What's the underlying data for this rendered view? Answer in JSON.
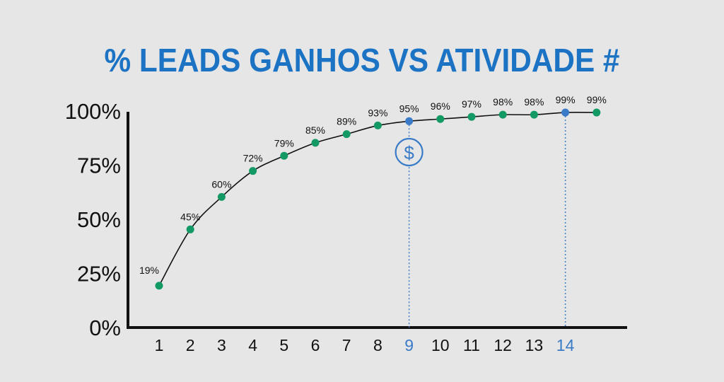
{
  "title": "% LEADS GANHOS VS ATIVIDADE #",
  "chart_data": {
    "type": "line",
    "title": "% LEADS GANHOS VS ATIVIDADE #",
    "x": [
      1,
      2,
      3,
      4,
      5,
      6,
      7,
      8,
      9,
      10,
      11,
      12,
      13,
      14,
      15
    ],
    "x_tick_labels": [
      "1",
      "2",
      "3",
      "4",
      "5",
      "6",
      "7",
      "8",
      "9",
      "10",
      "11",
      "12",
      "13",
      "14",
      ""
    ],
    "highlighted_x": [
      9,
      14
    ],
    "values": [
      19,
      45,
      60,
      72,
      79,
      85,
      89,
      93,
      95,
      96,
      97,
      98,
      98,
      99,
      99
    ],
    "data_labels": [
      "19%",
      "45%",
      "60%",
      "72%",
      "79%",
      "85%",
      "89%",
      "93%",
      "95%",
      "96%",
      "97%",
      "98%",
      "98%",
      "99%",
      "99%"
    ],
    "y_tick_labels": [
      "0%",
      "25%",
      "50%",
      "75%",
      "100%"
    ],
    "y_ticks": [
      0,
      25,
      50,
      75,
      100
    ],
    "ylim": [
      0,
      100
    ],
    "grid": false,
    "annotation_icon": "dollar-circle-icon",
    "colors": {
      "point": "#139a64",
      "highlight_point": "#3a7bc8",
      "line": "#111111",
      "title": "#1c73c4",
      "guide": "#3a7bc8"
    }
  }
}
